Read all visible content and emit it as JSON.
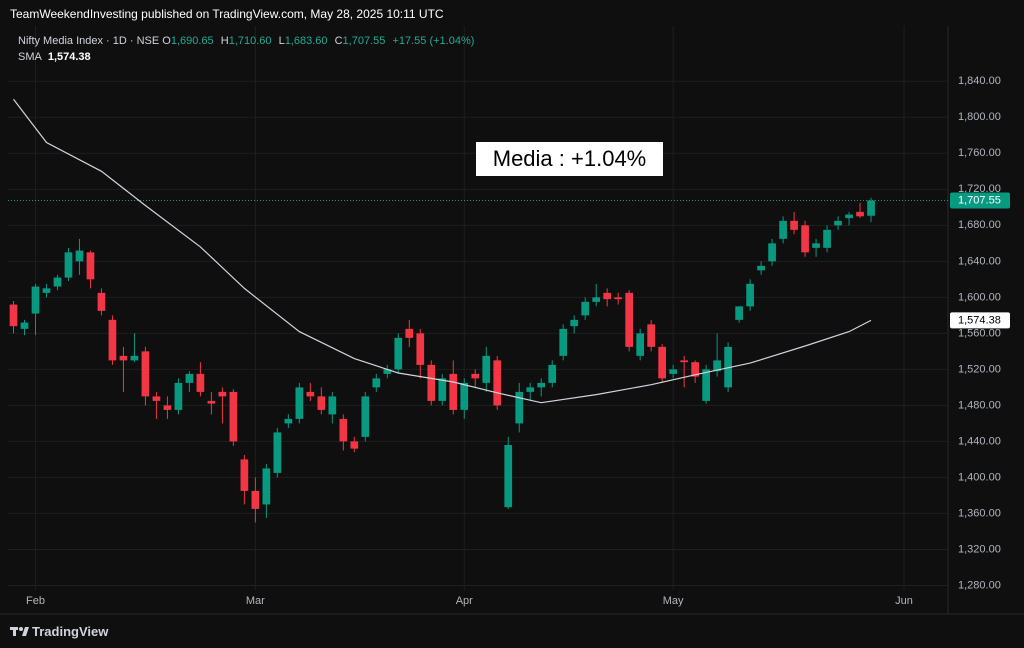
{
  "header": {
    "publisher": "TeamWeekendInvesting published on TradingView.com, May 28, 2025 10:11 UTC"
  },
  "chart_data": {
    "type": "candlestick",
    "legend": {
      "symbol": "Nifty Media Index · 1D · NSE",
      "o_label": "O",
      "o": "1,690.65",
      "h_label": "H",
      "h": "1,710.60",
      "l_label": "L",
      "l": "1,683.60",
      "c_label": "C",
      "c": "1,707.55",
      "change": "+17.55 (+1.04%)"
    },
    "annotation": "Media : +1.04%",
    "up_color": "#089981",
    "down_color": "#f23645",
    "open": [
      1592,
      1565,
      1582,
      1605,
      1612,
      1622,
      1640,
      1650,
      1605,
      1575,
      1535,
      1530,
      1540,
      1490,
      1480,
      1475,
      1505,
      1515,
      1485,
      1495,
      1495,
      1420,
      1385,
      1370,
      1405,
      1460,
      1465,
      1495,
      1490,
      1470,
      1465,
      1440,
      1445,
      1500,
      1515,
      1520,
      1565,
      1560,
      1525,
      1485,
      1515,
      1475,
      1515,
      1505,
      1530,
      1367,
      1460,
      1495,
      1500,
      1505,
      1535,
      1568,
      1580,
      1595,
      1605,
      1600,
      1605,
      1535,
      1570,
      1545,
      1515,
      1530,
      1528,
      1485,
      1518,
      1500,
      1575,
      1590,
      1630,
      1640,
      1665,
      1685,
      1680,
      1655,
      1655,
      1680,
      1688,
      1695,
      1690.65
    ],
    "high": [
      1596,
      1575,
      1615,
      1615,
      1625,
      1655,
      1665,
      1652,
      1610,
      1580,
      1545,
      1560,
      1545,
      1495,
      1490,
      1510,
      1518,
      1528,
      1495,
      1500,
      1498,
      1425,
      1400,
      1415,
      1455,
      1470,
      1505,
      1505,
      1500,
      1495,
      1470,
      1445,
      1495,
      1515,
      1525,
      1560,
      1575,
      1565,
      1530,
      1515,
      1530,
      1510,
      1520,
      1545,
      1535,
      1445,
      1505,
      1505,
      1510,
      1530,
      1570,
      1580,
      1600,
      1615,
      1610,
      1605,
      1608,
      1565,
      1575,
      1548,
      1525,
      1535,
      1530,
      1525,
      1560,
      1550,
      1590,
      1620,
      1640,
      1665,
      1690,
      1695,
      1685,
      1665,
      1680,
      1690,
      1695,
      1705,
      1710.6
    ],
    "low": [
      1560,
      1558,
      1558,
      1600,
      1608,
      1618,
      1625,
      1610,
      1580,
      1525,
      1495,
      1528,
      1480,
      1465,
      1465,
      1470,
      1495,
      1490,
      1470,
      1460,
      1435,
      1370,
      1350,
      1355,
      1400,
      1455,
      1460,
      1485,
      1470,
      1460,
      1430,
      1428,
      1440,
      1495,
      1510,
      1515,
      1545,
      1510,
      1480,
      1480,
      1470,
      1465,
      1500,
      1495,
      1475,
      1365,
      1450,
      1485,
      1490,
      1500,
      1530,
      1560,
      1575,
      1590,
      1590,
      1592,
      1540,
      1530,
      1540,
      1505,
      1510,
      1500,
      1505,
      1482,
      1512,
      1495,
      1572,
      1585,
      1625,
      1635,
      1660,
      1670,
      1645,
      1645,
      1650,
      1675,
      1680,
      1688,
      1683.6
    ],
    "close": [
      1568,
      1572,
      1612,
      1610,
      1622,
      1650,
      1652,
      1620,
      1585,
      1530,
      1530,
      1535,
      1490,
      1485,
      1475,
      1505,
      1515,
      1495,
      1482,
      1490,
      1440,
      1385,
      1365,
      1410,
      1450,
      1465,
      1500,
      1490,
      1475,
      1490,
      1440,
      1432,
      1490,
      1510,
      1520,
      1555,
      1555,
      1525,
      1485,
      1510,
      1475,
      1505,
      1510,
      1535,
      1480,
      1436,
      1495,
      1500,
      1505,
      1525,
      1565,
      1575,
      1595,
      1600,
      1598,
      1598,
      1545,
      1560,
      1545,
      1510,
      1520,
      1528,
      1512,
      1520,
      1530,
      1545,
      1590,
      1615,
      1635,
      1660,
      1685,
      1675,
      1650,
      1660,
      1675,
      1685,
      1692,
      1690,
      1707.55
    ],
    "series": [
      {
        "name": "SMA",
        "color": "#d1d4dc",
        "x": [
          0,
          3,
          8,
          12,
          17,
          21,
          26,
          31,
          35,
          40,
          44,
          48,
          53,
          58,
          62,
          67,
          72,
          76,
          78
        ],
        "values": [
          1820,
          1772,
          1740,
          1702,
          1656,
          1610,
          1562,
          1532,
          1516,
          1506,
          1494,
          1483,
          1492,
          1503,
          1514,
          1527,
          1546,
          1562,
          1574.38
        ],
        "value_label": "1,574.38"
      }
    ],
    "last_price": {
      "value": 1707.55,
      "label": "1,707.55"
    },
    "xlim": [
      -0.5,
      85
    ],
    "xticks": [
      {
        "value": 2,
        "label": "Feb"
      },
      {
        "value": 22,
        "label": "Mar"
      },
      {
        "value": 41,
        "label": "Apr"
      },
      {
        "value": 60,
        "label": "May"
      },
      {
        "value": 81,
        "label": "Jun"
      }
    ],
    "ylim": [
      1248.3,
      1901.4
    ],
    "yticks": [
      {
        "value": 1280,
        "label": "1,280.00"
      },
      {
        "value": 1320,
        "label": "1,320.00"
      },
      {
        "value": 1360,
        "label": "1,360.00"
      },
      {
        "value": 1400,
        "label": "1,400.00"
      },
      {
        "value": 1440,
        "label": "1,440.00"
      },
      {
        "value": 1480,
        "label": "1,480.00"
      },
      {
        "value": 1520,
        "label": "1,520.00"
      },
      {
        "value": 1560,
        "label": "1,560.00"
      },
      {
        "value": 1600,
        "label": "1,600.00"
      },
      {
        "value": 1640,
        "label": "1,640.00"
      },
      {
        "value": 1680,
        "label": "1,680.00"
      },
      {
        "value": 1720,
        "label": "1,720.00"
      },
      {
        "value": 1760,
        "label": "1,760.00"
      },
      {
        "value": 1800,
        "label": "1,800.00"
      },
      {
        "value": 1840,
        "label": "1,840.00"
      }
    ],
    "grid": true
  },
  "footer": {
    "brand": "TradingView"
  }
}
